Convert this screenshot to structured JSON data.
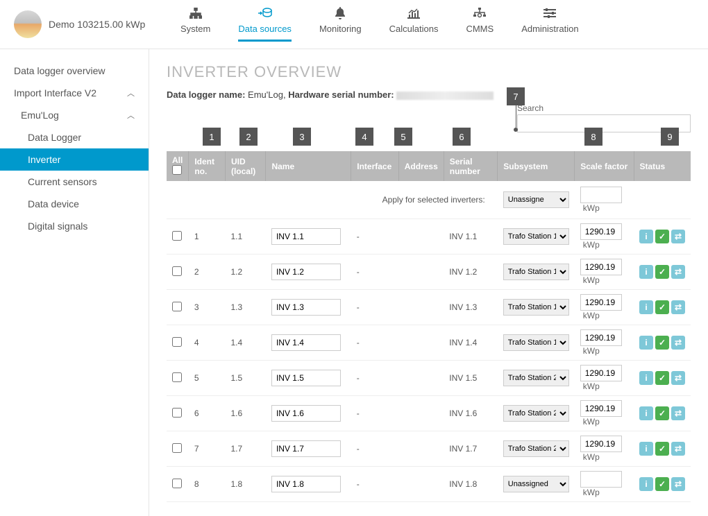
{
  "header": {
    "site_name": "Demo 103215.00 kWp"
  },
  "tabs": [
    {
      "label": "System"
    },
    {
      "label": "Data sources"
    },
    {
      "label": "Monitoring"
    },
    {
      "label": "Calculations"
    },
    {
      "label": "CMMS"
    },
    {
      "label": "Administration"
    }
  ],
  "sidebar": {
    "items": [
      {
        "label": "Data logger overview",
        "indent": 0
      },
      {
        "label": "Import Interface V2",
        "indent": 0,
        "expand": true
      },
      {
        "label": "Emu'Log",
        "indent": 1,
        "expand": true
      },
      {
        "label": "Data Logger",
        "indent": 2
      },
      {
        "label": "Inverter",
        "indent": 2,
        "active": true
      },
      {
        "label": "Current sensors",
        "indent": 2
      },
      {
        "label": "Data device",
        "indent": 2
      },
      {
        "label": "Digital signals",
        "indent": 2
      }
    ]
  },
  "page": {
    "title": "INVERTER OVERVIEW",
    "logger_name_label": "Data logger name:",
    "logger_name": "Emu'Log,",
    "hw_serial_label": "Hardware serial number:",
    "search_label": "Search"
  },
  "markers": [
    "1",
    "2",
    "3",
    "4",
    "5",
    "6",
    "7",
    "8",
    "9"
  ],
  "columns": {
    "all": "All",
    "ident": "Ident no.",
    "uid": "UID (local)",
    "name": "Name",
    "iface": "Interface",
    "addr": "Address",
    "serial": "Serial number",
    "subsys": "Subsystem",
    "scale": "Scale factor",
    "status": "Status"
  },
  "apply": {
    "label": "Apply for selected inverters:",
    "subsys": "Unassigne",
    "unit": "kWp"
  },
  "subsys_options": [
    "Trafo Station 1",
    "Trafo Station 2",
    "Unassigned"
  ],
  "rows": [
    {
      "ident": "1",
      "uid": "1.1",
      "name": "INV 1.1",
      "iface": "-",
      "addr": "",
      "serial": "INV 1.1",
      "subsys": "Trafo Station 1",
      "scale": "1290.19",
      "unit": "kWp"
    },
    {
      "ident": "2",
      "uid": "1.2",
      "name": "INV 1.2",
      "iface": "-",
      "addr": "",
      "serial": "INV 1.2",
      "subsys": "Trafo Station 1",
      "scale": "1290.19",
      "unit": "kWp"
    },
    {
      "ident": "3",
      "uid": "1.3",
      "name": "INV 1.3",
      "iface": "-",
      "addr": "",
      "serial": "INV 1.3",
      "subsys": "Trafo Station 1",
      "scale": "1290.19",
      "unit": "kWp"
    },
    {
      "ident": "4",
      "uid": "1.4",
      "name": "INV 1.4",
      "iface": "-",
      "addr": "",
      "serial": "INV 1.4",
      "subsys": "Trafo Station 1",
      "scale": "1290.19",
      "unit": "kWp"
    },
    {
      "ident": "5",
      "uid": "1.5",
      "name": "INV 1.5",
      "iface": "-",
      "addr": "",
      "serial": "INV 1.5",
      "subsys": "Trafo Station 2",
      "scale": "1290.19",
      "unit": "kWp"
    },
    {
      "ident": "6",
      "uid": "1.6",
      "name": "INV 1.6",
      "iface": "-",
      "addr": "",
      "serial": "INV 1.6",
      "subsys": "Trafo Station 2",
      "scale": "1290.19",
      "unit": "kWp"
    },
    {
      "ident": "7",
      "uid": "1.7",
      "name": "INV 1.7",
      "iface": "-",
      "addr": "",
      "serial": "INV 1.7",
      "subsys": "Trafo Station 2",
      "scale": "1290.19",
      "unit": "kWp"
    },
    {
      "ident": "8",
      "uid": "1.8",
      "name": "INV 1.8",
      "iface": "-",
      "addr": "",
      "serial": "INV 1.8",
      "subsys": "Unassigned",
      "scale": "",
      "unit": "kWp"
    }
  ],
  "colors": {
    "accent": "#0099cc",
    "header_bg": "#b9b9b9",
    "ok": "#4caf50",
    "info": "#7ec8d8",
    "marker": "#555555"
  }
}
